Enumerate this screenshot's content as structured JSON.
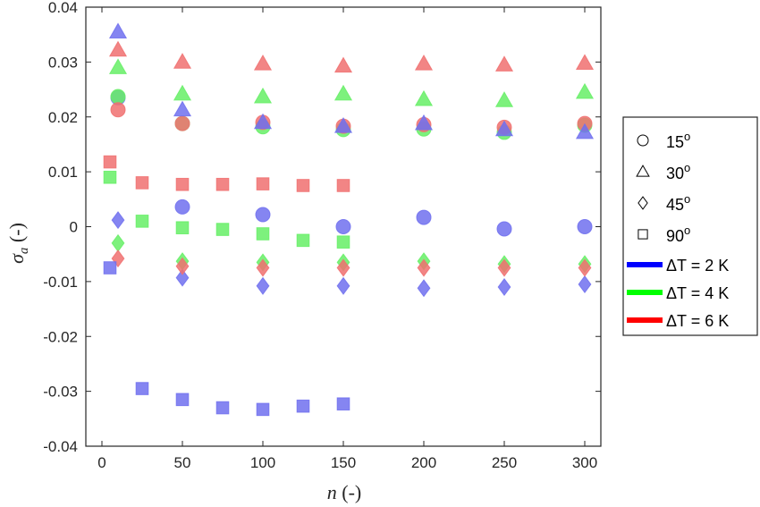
{
  "chart_data": {
    "type": "scatter",
    "xlabel": "n (-)",
    "ylabel": "σa (-)",
    "xlim": [
      -10,
      310
    ],
    "ylim": [
      -0.04,
      0.04
    ],
    "xticks": [
      0,
      50,
      100,
      150,
      200,
      250,
      300
    ],
    "yticks": [
      -0.04,
      -0.03,
      -0.02,
      -0.01,
      0,
      0.01,
      0.02,
      0.03,
      0.04
    ],
    "xtick_labels": [
      "0",
      "50",
      "100",
      "150",
      "200",
      "250",
      "300"
    ],
    "ytick_labels": [
      "-0.04",
      "-0.03",
      "-0.02",
      "-0.01",
      "0",
      "0.01",
      "0.02",
      "0.03",
      "0.04"
    ],
    "grid": false,
    "legend_position": "outside-right",
    "marker_legend": [
      {
        "marker": "circle",
        "label": "15",
        "sup": "o"
      },
      {
        "marker": "triangle",
        "label": "30",
        "sup": "o"
      },
      {
        "marker": "diamond",
        "label": "45",
        "sup": "o"
      },
      {
        "marker": "square",
        "label": "90",
        "sup": "o"
      }
    ],
    "color_legend": [
      {
        "label": "ΔT = 2 K",
        "color": "#0000ff"
      },
      {
        "label": "ΔT = 4 K",
        "color": "#00ff00"
      },
      {
        "label": "ΔT = 6 K",
        "color": "#ff0000"
      }
    ],
    "series": [
      {
        "dT": "2 K",
        "marker": "circle",
        "color": "#7070ee",
        "points": [
          [
            10,
            0.0235
          ],
          [
            50,
            0.0036
          ],
          [
            100,
            0.0022
          ],
          [
            150,
            0.0
          ],
          [
            200,
            0.0017
          ],
          [
            250,
            -0.0004
          ],
          [
            300,
            0.0
          ]
        ]
      },
      {
        "dT": "4 K",
        "marker": "circle",
        "color": "#66ee66",
        "points": [
          [
            10,
            0.0237
          ],
          [
            50,
            0.0188
          ],
          [
            100,
            0.0182
          ],
          [
            150,
            0.0177
          ],
          [
            200,
            0.0178
          ],
          [
            250,
            0.0172
          ],
          [
            300,
            0.0185
          ]
        ]
      },
      {
        "dT": "6 K",
        "marker": "circle",
        "color": "#f07070",
        "points": [
          [
            10,
            0.0213
          ],
          [
            50,
            0.0188
          ],
          [
            100,
            0.019
          ],
          [
            150,
            0.0183
          ],
          [
            200,
            0.0186
          ],
          [
            250,
            0.0181
          ],
          [
            300,
            0.0188
          ]
        ]
      },
      {
        "dT": "2 K",
        "marker": "triangle",
        "color": "#7070ee",
        "points": [
          [
            10,
            0.0355
          ],
          [
            50,
            0.0213
          ],
          [
            100,
            0.019
          ],
          [
            150,
            0.0183
          ],
          [
            200,
            0.0188
          ],
          [
            250,
            0.0177
          ],
          [
            300,
            0.0172
          ]
        ]
      },
      {
        "dT": "4 K",
        "marker": "triangle",
        "color": "#66ee66",
        "points": [
          [
            10,
            0.029
          ],
          [
            50,
            0.0242
          ],
          [
            100,
            0.0237
          ],
          [
            150,
            0.0242
          ],
          [
            200,
            0.0232
          ],
          [
            250,
            0.023
          ],
          [
            300,
            0.0245
          ]
        ]
      },
      {
        "dT": "6 K",
        "marker": "triangle",
        "color": "#f07070",
        "points": [
          [
            10,
            0.0322
          ],
          [
            50,
            0.03
          ],
          [
            100,
            0.0297
          ],
          [
            150,
            0.0293
          ],
          [
            200,
            0.0297
          ],
          [
            250,
            0.0295
          ],
          [
            300,
            0.0298
          ]
        ]
      },
      {
        "dT": "2 K",
        "marker": "diamond",
        "color": "#7070ee",
        "points": [
          [
            10,
            0.0012
          ],
          [
            50,
            -0.0093
          ],
          [
            100,
            -0.0108
          ],
          [
            150,
            -0.0108
          ],
          [
            200,
            -0.0112
          ],
          [
            250,
            -0.011
          ],
          [
            300,
            -0.0105
          ]
        ]
      },
      {
        "dT": "4 K",
        "marker": "diamond",
        "color": "#66ee66",
        "points": [
          [
            10,
            -0.003
          ],
          [
            50,
            -0.0063
          ],
          [
            100,
            -0.0065
          ],
          [
            150,
            -0.0065
          ],
          [
            200,
            -0.0063
          ],
          [
            250,
            -0.0068
          ],
          [
            300,
            -0.0068
          ]
        ]
      },
      {
        "dT": "6 K",
        "marker": "diamond",
        "color": "#f07070",
        "points": [
          [
            10,
            -0.0058
          ],
          [
            50,
            -0.0072
          ],
          [
            100,
            -0.0075
          ],
          [
            150,
            -0.0075
          ],
          [
            200,
            -0.0075
          ],
          [
            250,
            -0.0075
          ],
          [
            300,
            -0.0075
          ]
        ]
      },
      {
        "dT": "2 K",
        "marker": "square",
        "color": "#7070ee",
        "points": [
          [
            5,
            -0.0075
          ],
          [
            25,
            -0.0295
          ],
          [
            50,
            -0.0315
          ],
          [
            75,
            -0.033
          ],
          [
            100,
            -0.0333
          ],
          [
            125,
            -0.0327
          ],
          [
            150,
            -0.0323
          ]
        ]
      },
      {
        "dT": "4 K",
        "marker": "square",
        "color": "#66ee66",
        "points": [
          [
            5,
            0.009
          ],
          [
            25,
            0.001
          ],
          [
            50,
            -0.0002
          ],
          [
            75,
            -0.0005
          ],
          [
            100,
            -0.0013
          ],
          [
            125,
            -0.0025
          ],
          [
            150,
            -0.0028
          ]
        ]
      },
      {
        "dT": "6 K",
        "marker": "square",
        "color": "#f07070",
        "points": [
          [
            5,
            0.0118
          ],
          [
            25,
            0.008
          ],
          [
            50,
            0.0077
          ],
          [
            75,
            0.0077
          ],
          [
            100,
            0.0078
          ],
          [
            125,
            0.0075
          ],
          [
            150,
            0.0075
          ]
        ]
      }
    ]
  }
}
